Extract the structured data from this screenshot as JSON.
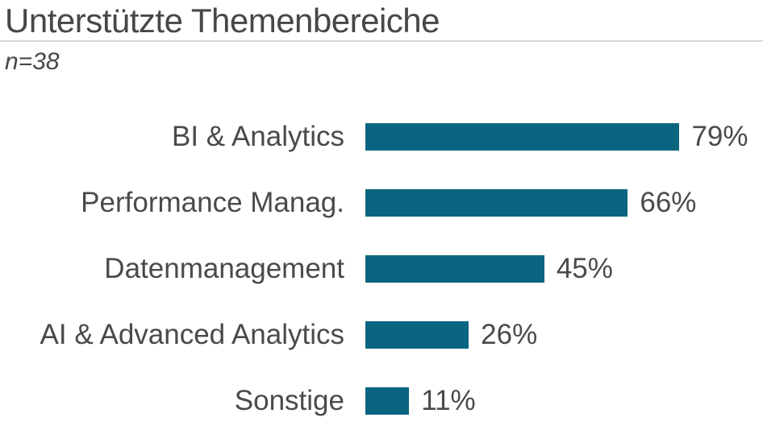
{
  "header": {
    "title": "Unterstützte Themenbereiche",
    "subtitle": "n=38"
  },
  "chart_data": {
    "type": "bar",
    "orientation": "horizontal",
    "title": "Unterstützte Themenbereiche",
    "subtitle": "n=38",
    "sample_size": 38,
    "categories": [
      "BI & Analytics",
      "Performance Manag.",
      "Datenmanagement",
      "AI & Advanced Analytics",
      "Sonstige"
    ],
    "values": [
      79,
      66,
      45,
      26,
      11
    ],
    "value_suffix": "%",
    "xlabel": "",
    "ylabel": "",
    "xlim": [
      0,
      100
    ],
    "grid": false,
    "legend": "none",
    "value_label_position": "outside-end",
    "colors": {
      "bar": "#0a6680",
      "text": "#4a4a4a",
      "divider": "#d9d9d9",
      "background": "#ffffff"
    }
  }
}
